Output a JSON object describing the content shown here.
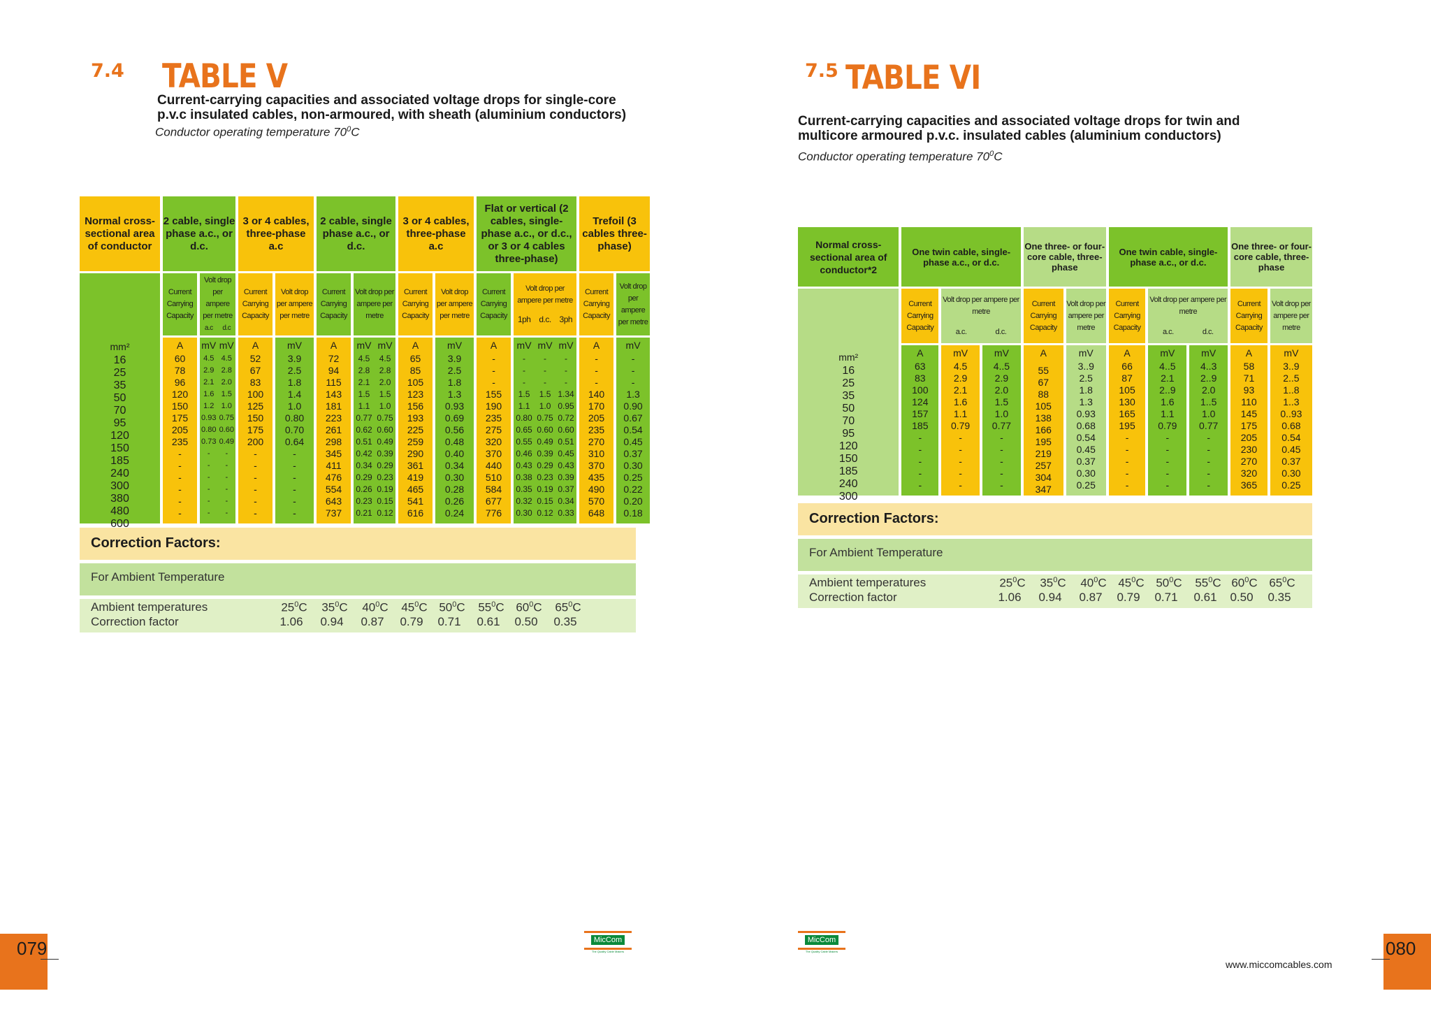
{
  "left": {
    "section": "7.4",
    "title": "TABLE V",
    "desc1": "Current-carrying capacities and associated voltage drops for single-core",
    "desc2": "p.v.c insulated cables, non-armoured, with sheath (aluminium conductors)",
    "temp_text": "Conductor operating temperature 70",
    "temp_sup": "0",
    "temp_unit": "C",
    "headers": [
      "Normal cross-sectional area of conductor",
      "2 cable, single phase a.c., or d.c.",
      "3 or 4 cables, three-phase a.c",
      "2 cable, single phase a.c., or d.c.",
      "3 or 4 cables, three-phase a.c",
      "Flat or vertical (2 cables, single-phase a.c., or d.c., or 3 or 4 cables three-phase)",
      "Trefoil (3 cables three-phase)"
    ],
    "sub_current": "Current Carrying Capacity",
    "sub_volt": "Volt drop per ampere per metre",
    "sub_acdc_a": "a.c",
    "sub_acdc_b": "d.c",
    "sub_1ph": "1ph",
    "sub_dc": "d.c.",
    "sub_3ph": "3ph",
    "unit_mm": "mm²",
    "unit_A": "A",
    "unit_mV": "mV",
    "sizes": [
      "16",
      "25",
      "35",
      "50",
      "70",
      "95",
      "120",
      "150",
      "185",
      "240",
      "300",
      "380",
      "480",
      "600"
    ],
    "c1_A": [
      "60",
      "78",
      "96",
      "120",
      "150",
      "175",
      "205",
      "235",
      "-",
      "-",
      "-",
      "-",
      "-",
      "-"
    ],
    "c1_ac": [
      "4.5",
      "2.9",
      "2.1",
      "1.6",
      "1.2",
      "0.93",
      "0.80",
      "0.73",
      "-",
      "-",
      "-",
      "-",
      "-",
      "-"
    ],
    "c1_dc": [
      "4.5",
      "2.8",
      "2.0",
      "1.5",
      "1.0",
      "0.75",
      "0.60",
      "0.49",
      "-",
      "-",
      "-",
      "-",
      "-",
      "-"
    ],
    "c2_A": [
      "52",
      "67",
      "83",
      "100",
      "125",
      "150",
      "175",
      "200",
      "-",
      "-",
      "-",
      "-",
      "-",
      "-"
    ],
    "c2_mV": [
      "3.9",
      "2.5",
      "1.8",
      "1.4",
      "1.0",
      "0.80",
      "0.70",
      "0.64",
      "-",
      "-",
      "-",
      "-",
      "-",
      "-"
    ],
    "c3_A": [
      "72",
      "94",
      "115",
      "143",
      "181",
      "223",
      "261",
      "298",
      "345",
      "411",
      "476",
      "554",
      "643",
      "737"
    ],
    "c3_ac": [
      "4.5",
      "2.8",
      "2.1",
      "1.5",
      "1.1",
      "0.77",
      "0.62",
      "0.51",
      "0.42",
      "0.34",
      "0.29",
      "0.26",
      "0.23",
      "0.21"
    ],
    "c3_dc": [
      "4.5",
      "2.8",
      "2.0",
      "1.5",
      "1.0",
      "0.75",
      "0.60",
      "0.49",
      "0.39",
      "0.29",
      "0.23",
      "0.19",
      "0.15",
      "0.12"
    ],
    "c4_A": [
      "65",
      "85",
      "105",
      "123",
      "156",
      "193",
      "225",
      "259",
      "290",
      "361",
      "419",
      "465",
      "541",
      "616"
    ],
    "c4_mV": [
      "3.9",
      "2.5",
      "1.8",
      "1.3",
      "0.93",
      "0.69",
      "0.56",
      "0.48",
      "0.40",
      "0.34",
      "0.30",
      "0.28",
      "0.26",
      "0.24"
    ],
    "c5_A": [
      "-",
      "-",
      "-",
      "155",
      "190",
      "235",
      "275",
      "320",
      "370",
      "440",
      "510",
      "584",
      "677",
      "776"
    ],
    "c5_1ph": [
      "-",
      "-",
      "-",
      "1.5",
      "1.1",
      "0.80",
      "0.65",
      "0.55",
      "0.46",
      "0.43",
      "0.38",
      "0.35",
      "0.32",
      "0.30"
    ],
    "c5_dc": [
      "-",
      "-",
      "-",
      "1.5",
      "1.0",
      "0.75",
      "0.60",
      "0.49",
      "0.39",
      "0.29",
      "0.23",
      "0.19",
      "0.15",
      "0.12"
    ],
    "c5_3ph": [
      "-",
      "-",
      "-",
      "1.34",
      "0.95",
      "0.72",
      "0.60",
      "0.51",
      "0.45",
      "0.43",
      "0.39",
      "0.37",
      "0.34",
      "0.33"
    ],
    "c6_A": [
      "-",
      "-",
      "-",
      "140",
      "170",
      "205",
      "235",
      "270",
      "310",
      "370",
      "435",
      "490",
      "570",
      "648"
    ],
    "c6_mV": [
      "-",
      "-",
      "-",
      "1.3",
      "0.90",
      "0.67",
      "0.54",
      "0.45",
      "0.37",
      "0.30",
      "0.25",
      "0.22",
      "0.20",
      "0.18"
    ],
    "cf_title": "Correction Factors:",
    "amb_title": "For Ambient Temperature",
    "row1_label": "Ambient temperatures",
    "row2_label": "Correction factor",
    "temps": [
      "25",
      "35",
      "40",
      "45",
      "50",
      "55",
      "60",
      "65"
    ],
    "factors": [
      "1.06",
      "0.94",
      "0.87",
      "0.79",
      "0.71",
      "0.61",
      "0.50",
      "0.35"
    ],
    "deg_sup": "0",
    "deg_unit": "C",
    "page": "079"
  },
  "right": {
    "section": "7.5",
    "title": "TABLE VI",
    "desc1": "Current-carrying capacities and associated voltage drops for twin and",
    "desc2": "multicore armoured p.v.c. insulated cables (aluminium conductors)",
    "temp_text": "Conductor operating temperature 70",
    "temp_sup": "0",
    "temp_unit": "C",
    "headers": [
      "Normal cross-sectional area of conductor*2",
      "One twin cable, single-phase a.c., or d.c.",
      "One three- or four-core cable, three-phase",
      "One twin cable, single-phase a.c., or d.c.",
      "One three- or four-core cable, three-phase"
    ],
    "sub_current": "Current Carrying Capacity",
    "sub_volt": "Volt drop per ampere per metre",
    "sub_ac": "a.c.",
    "sub_dc": "d.c.",
    "unit_mm": "mm²",
    "unit_A": "A",
    "unit_mV": "mV",
    "sizes": [
      "16",
      "25",
      "35",
      "50",
      "70",
      "95",
      "120",
      "150",
      "185",
      "240",
      "300"
    ],
    "c1_A": [
      "63",
      "83",
      "100",
      "124",
      "157",
      "185",
      "-",
      "-",
      "-",
      "-",
      "-"
    ],
    "c1_ac": [
      "4.5",
      "2.9",
      "2.1",
      "1.6",
      "1.1",
      "0.79",
      "-",
      "-",
      "-",
      "-",
      "-"
    ],
    "c1_dc": [
      "4..5",
      "2.9",
      "2.0",
      "1.5",
      "1.0",
      "0.77",
      "-",
      "-",
      "-",
      "-",
      "-"
    ],
    "c2_A": [
      "55",
      "67",
      "88",
      "105",
      "138",
      "166",
      "195",
      "219",
      "257",
      "304",
      "347"
    ],
    "c2_mV": [
      "3..9",
      "2.5",
      "1.8",
      "1.3",
      "0.93",
      "0.68",
      "0.54",
      "0.45",
      "0.37",
      "0.30",
      "0.25"
    ],
    "c3_A": [
      "66",
      "87",
      "105",
      "130",
      "165",
      "195",
      "-",
      "-",
      "-",
      "-",
      "-"
    ],
    "c3_ac": [
      "4..5",
      "2.1",
      "2..9",
      "1.6",
      "1.1",
      "0.79",
      "-",
      "-",
      "-",
      "-",
      "-"
    ],
    "c3_dc": [
      "4..3",
      "2..9",
      "2.0",
      "1..5",
      "1.0",
      "0.77",
      "-",
      "-",
      "-",
      "-",
      "-"
    ],
    "c4_A": [
      "58",
      "71",
      "93",
      "110",
      "145",
      "175",
      "205",
      "230",
      "270",
      "320",
      "365"
    ],
    "c4_mV": [
      "3..9",
      "2..5",
      "1..8",
      "1..3",
      "0..93",
      "0.68",
      "0.54",
      "0.45",
      "0.37",
      "0.30",
      "0.25"
    ],
    "cf_title": "Correction Factors:",
    "amb_title": "For Ambient Temperature",
    "row1_label": "Ambient temperatures",
    "row2_label": "Correction factor",
    "temps": [
      "25",
      "35",
      "40",
      "45",
      "50",
      "55",
      "60",
      "65"
    ],
    "factors": [
      "1.06",
      "0.94",
      "0.87",
      "0.79",
      "0.71",
      "0.61",
      "0.50",
      "0.35"
    ],
    "deg_sup": "0",
    "deg_unit": "C",
    "page": "080",
    "website": "www.miccomcables.com"
  },
  "logo": {
    "name": "MicCom",
    "tagline": "The Quality Cable Makers"
  },
  "colors": {
    "orange": "#e8731c",
    "green": "#7cc22a",
    "yellow": "#f8c20b",
    "light_green": "#b6dc86",
    "cf_bar": "#fae4a2"
  }
}
